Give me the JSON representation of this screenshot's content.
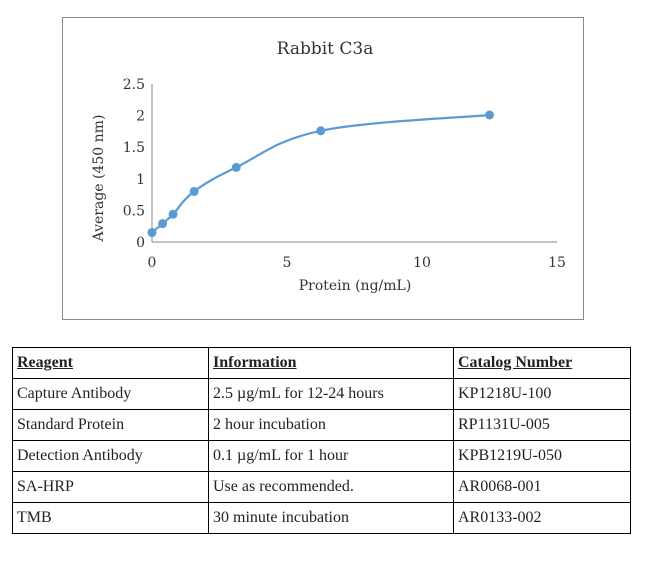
{
  "chart_data": {
    "type": "line",
    "title": "Rabbit C3a",
    "xlabel": "Protein (ng/mL)",
    "ylabel": "Average (450 nm)",
    "xlim": [
      0,
      15
    ],
    "ylim": [
      0,
      2.5
    ],
    "xticks": [
      "0",
      "5",
      "10",
      "15"
    ],
    "yticks": [
      "0",
      "0.5",
      "1",
      "1.5",
      "2",
      "2.5"
    ],
    "grid": false,
    "legend": "none",
    "line_color": "#5b9bd5",
    "x": [
      0,
      0.39,
      0.78,
      1.56,
      3.12,
      6.25,
      12.5
    ],
    "y": [
      0.15,
      0.29,
      0.44,
      0.8,
      1.18,
      1.76,
      2.01
    ]
  },
  "table": {
    "headers": [
      "Reagent",
      "Information",
      "Catalog Number"
    ],
    "rows": [
      [
        "Capture Antibody",
        "2.5 µg/mL for 12-24 hours",
        "KP1218U-100"
      ],
      [
        "Standard Protein",
        "2 hour incubation",
        "RP1131U-005"
      ],
      [
        "Detection Antibody",
        "0.1 µg/mL for 1 hour",
        "KPB1219U-050"
      ],
      [
        "SA-HRP",
        "Use as recommended.",
        "AR0068-001"
      ],
      [
        "TMB",
        "30 minute incubation",
        "AR0133-002"
      ]
    ]
  }
}
